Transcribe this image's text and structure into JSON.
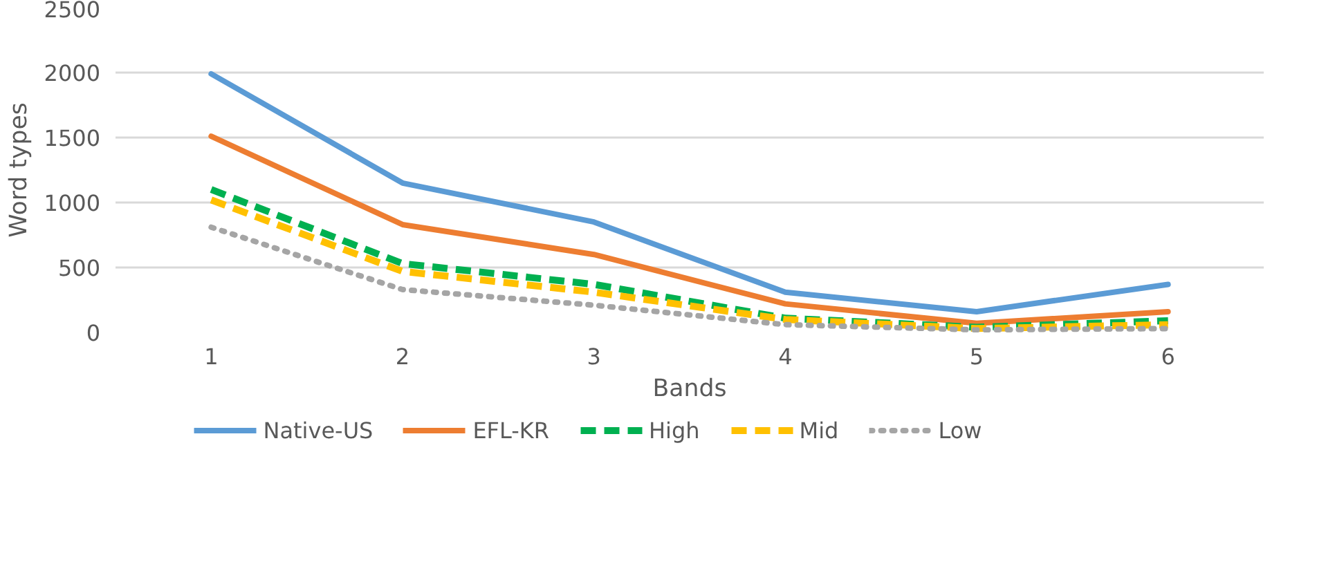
{
  "chart_data": {
    "type": "line",
    "xlabel": "Bands",
    "ylabel": "Word types",
    "categories": [
      "1",
      "2",
      "3",
      "4",
      "5",
      "6"
    ],
    "ylim": [
      0,
      2500
    ],
    "yticks": [
      0,
      500,
      1000,
      1500,
      2000,
      2500
    ],
    "grid": "y",
    "legend": "bottom",
    "marker": "none",
    "series": [
      {
        "name": "Native-US",
        "color": "#5b9bd5",
        "line_style": "solid",
        "values": [
          1990,
          1150,
          850,
          310,
          160,
          370
        ]
      },
      {
        "name": "EFL-KR",
        "color": "#ed7d31",
        "line_style": "solid",
        "values": [
          1510,
          830,
          600,
          220,
          70,
          160
        ]
      },
      {
        "name": "High",
        "color": "#00b050",
        "line_style": "dashed",
        "values": [
          1100,
          530,
          370,
          110,
          40,
          90
        ]
      },
      {
        "name": "Mid",
        "color": "#ffc000",
        "line_style": "dashed",
        "values": [
          1020,
          470,
          310,
          100,
          30,
          60
        ]
      },
      {
        "name": "Low",
        "color": "#a5a5a5",
        "line_style": "dotted",
        "values": [
          810,
          330,
          210,
          60,
          20,
          30
        ]
      }
    ]
  }
}
